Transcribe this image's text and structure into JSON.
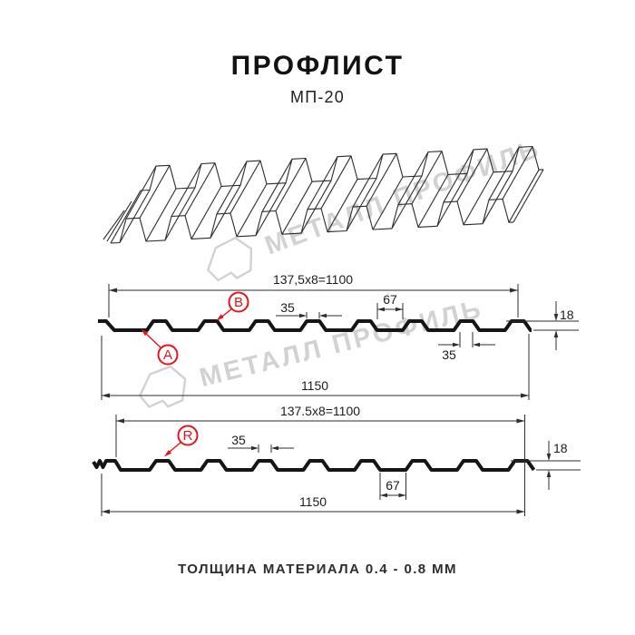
{
  "header": {
    "title": "ПРОФЛИСТ",
    "subtitle": "МП-20"
  },
  "watermark": {
    "text": "МЕТАЛЛ ПРОФИЛЬ",
    "logo": "metall-profil-logo"
  },
  "footer": {
    "text": "ТОЛЩИНА МАТЕРИАЛА 0.4 - 0.8 ММ"
  },
  "colors": {
    "line": "#151515",
    "dimension": "#2e2e2e",
    "accent_red": "#e8141c",
    "watermark_gray": "#d2d2d2"
  },
  "profiles": {
    "top_view": {
      "dims": {
        "pitch": "137,5x8=1100",
        "rib_top_width": "35",
        "valley_width": "67",
        "height": "18",
        "rib_bottom_width": "35",
        "overall_width": "1150"
      },
      "labels": {
        "a": "A",
        "b": "B"
      }
    },
    "bottom_view": {
      "dims": {
        "pitch": "137.5x8=1100",
        "rib_top_width": "35",
        "valley_width": "67",
        "height": "18",
        "overall_width": "1150"
      },
      "labels": {
        "r": "R"
      }
    }
  }
}
